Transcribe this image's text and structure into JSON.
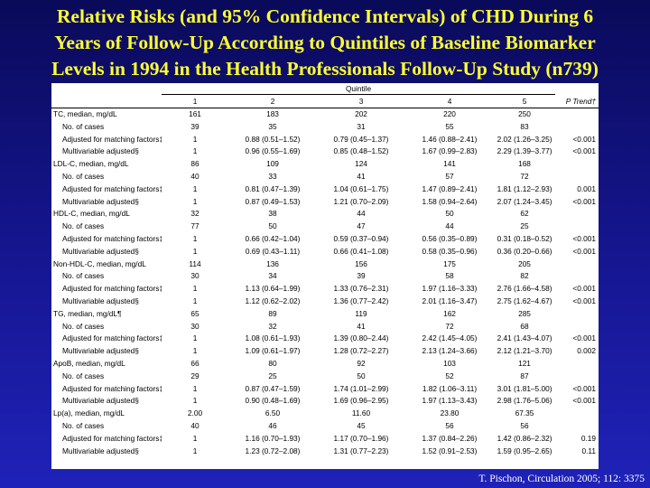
{
  "title": {
    "line1": "Relative Risks (and 95% Confidence Intervals) of CHD During 6",
    "line2": "Years of Follow-Up According to Quintiles of Baseline Biomarker",
    "line3": "Levels in 1994 in the Health Professionals Follow-Up Study (n739)"
  },
  "table": {
    "group_header": "Quintile",
    "columns": [
      "",
      "1",
      "2",
      "3",
      "4",
      "5",
      "P Trend†"
    ],
    "rows": [
      {
        "label": "TC, median, mg/dL",
        "sub": false,
        "cells": [
          "161",
          "183",
          "202",
          "220",
          "250",
          ""
        ]
      },
      {
        "label": "No. of cases",
        "sub": true,
        "cells": [
          "39",
          "35",
          "31",
          "55",
          "83",
          ""
        ]
      },
      {
        "label": "Adjusted for matching factors‡",
        "sub": true,
        "cells": [
          "1",
          "0.88 (0.51–1.52)",
          "0.79 (0.45–1.37)",
          "1.46 (0.88–2.41)",
          "2.02 (1.26–3.25)",
          "<0.001"
        ]
      },
      {
        "label": "Multivariable adjusted§",
        "sub": true,
        "cells": [
          "1",
          "0.96 (0.55–1.69)",
          "0.85 (0.48–1.52)",
          "1.67 (0.99–2.83)",
          "2.29 (1.39–3.77)",
          "<0.001"
        ]
      },
      {
        "label": "LDL-C, median, mg/dL",
        "sub": false,
        "cells": [
          "86",
          "109",
          "124",
          "141",
          "168",
          ""
        ]
      },
      {
        "label": "No. of cases",
        "sub": true,
        "cells": [
          "40",
          "33",
          "41",
          "57",
          "72",
          ""
        ]
      },
      {
        "label": "Adjusted for matching factors‡",
        "sub": true,
        "cells": [
          "1",
          "0.81 (0.47–1.39)",
          "1.04 (0.61–1.75)",
          "1.47 (0.89–2.41)",
          "1.81 (1.12–2.93)",
          "0.001"
        ]
      },
      {
        "label": "Multivariable adjusted§",
        "sub": true,
        "cells": [
          "1",
          "0.87 (0.49–1.53)",
          "1.21 (0.70–2.09)",
          "1.58 (0.94–2.64)",
          "2.07 (1.24–3.45)",
          "<0.001"
        ]
      },
      {
        "label": "HDL-C, median, mg/dL",
        "sub": false,
        "cells": [
          "32",
          "38",
          "44",
          "50",
          "62",
          ""
        ]
      },
      {
        "label": "No. of cases",
        "sub": true,
        "cells": [
          "77",
          "50",
          "47",
          "44",
          "25",
          ""
        ]
      },
      {
        "label": "Adjusted for matching factors‡",
        "sub": true,
        "cells": [
          "1",
          "0.66 (0.42–1.04)",
          "0.59 (0.37–0.94)",
          "0.56 (0.35–0.89)",
          "0.31 (0.18–0.52)",
          "<0.001"
        ]
      },
      {
        "label": "Multivariable adjusted§",
        "sub": true,
        "cells": [
          "1",
          "0.69 (0.43–1.11)",
          "0.66 (0.41–1.08)",
          "0.58 (0.35–0.96)",
          "0.36 (0.20–0.66)",
          "<0.001"
        ]
      },
      {
        "label": "Non-HDL-C, median, mg/dL",
        "sub": false,
        "cells": [
          "114",
          "136",
          "156",
          "175",
          "205",
          ""
        ]
      },
      {
        "label": "No. of cases",
        "sub": true,
        "cells": [
          "30",
          "34",
          "39",
          "58",
          "82",
          ""
        ]
      },
      {
        "label": "Adjusted for matching factors‡",
        "sub": true,
        "cells": [
          "1",
          "1.13 (0.64–1.99)",
          "1.33 (0.76–2.31)",
          "1.97 (1.16–3.33)",
          "2.76 (1.66–4.58)",
          "<0.001"
        ]
      },
      {
        "label": "Multivariable adjusted§",
        "sub": true,
        "cells": [
          "1",
          "1.12 (0.62–2.02)",
          "1.36 (0.77–2.42)",
          "2.01 (1.16–3.47)",
          "2.75 (1.62–4.67)",
          "<0.001"
        ]
      },
      {
        "label": "TG, median, mg/dL¶",
        "sub": false,
        "cells": [
          "65",
          "89",
          "119",
          "162",
          "285",
          ""
        ]
      },
      {
        "label": "No. of cases",
        "sub": true,
        "cells": [
          "30",
          "32",
          "41",
          "72",
          "68",
          ""
        ]
      },
      {
        "label": "Adjusted for matching factors‡",
        "sub": true,
        "cells": [
          "1",
          "1.08 (0.61–1.93)",
          "1.39 (0.80–2.44)",
          "2.42 (1.45–4.05)",
          "2.41 (1.43–4.07)",
          "<0.001"
        ]
      },
      {
        "label": "Multivariable adjusted§",
        "sub": true,
        "cells": [
          "1",
          "1.09 (0.61–1.97)",
          "1.28 (0.72–2.27)",
          "2.13 (1.24–3.66)",
          "2.12 (1.21–3.70)",
          "0.002"
        ]
      },
      {
        "label": "ApoB, median, mg/dL",
        "sub": false,
        "cells": [
          "66",
          "80",
          "92",
          "103",
          "121",
          ""
        ]
      },
      {
        "label": "No. of cases",
        "sub": true,
        "cells": [
          "29",
          "25",
          "50",
          "52",
          "87",
          ""
        ]
      },
      {
        "label": "Adjusted for matching factors‡",
        "sub": true,
        "cells": [
          "1",
          "0.87 (0.47–1.59)",
          "1.74 (1.01–2.99)",
          "1.82 (1.06–3.11)",
          "3.01 (1.81–5.00)",
          "<0.001"
        ]
      },
      {
        "label": "Multivariable adjusted§",
        "sub": true,
        "cells": [
          "1",
          "0.90 (0.48–1.69)",
          "1.69 (0.96–2.95)",
          "1.97 (1.13–3.43)",
          "2.98 (1.76–5.06)",
          "<0.001"
        ]
      },
      {
        "label": "Lp(a), median, mg/dL",
        "sub": false,
        "cells": [
          "2.00",
          "6.50",
          "11.60",
          "23.80",
          "67.35",
          ""
        ]
      },
      {
        "label": "No. of cases",
        "sub": true,
        "cells": [
          "40",
          "46",
          "45",
          "56",
          "56",
          ""
        ]
      },
      {
        "label": "Adjusted for matching factors‡",
        "sub": true,
        "cells": [
          "1",
          "1.16 (0.70–1.93)",
          "1.17 (0.70–1.96)",
          "1.37 (0.84–2.26)",
          "1.42 (0.86–2.32)",
          "0.19"
        ]
      },
      {
        "label": "Multivariable adjusted§",
        "sub": true,
        "cells": [
          "1",
          "1.23 (0.72–2.08)",
          "1.31 (0.77–2.23)",
          "1.52 (0.91–2.53)",
          "1.59 (0.95–2.65)",
          "0.11"
        ]
      }
    ]
  },
  "citation": "T. Pischon, Circulation 2005; 112: 3375"
}
